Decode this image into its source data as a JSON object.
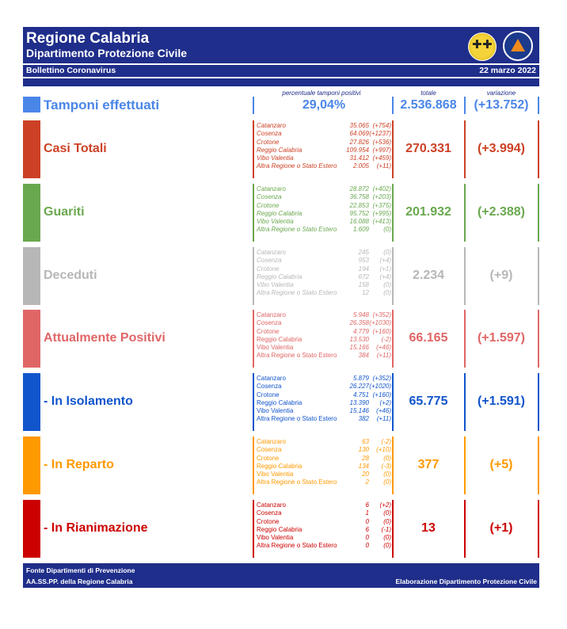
{
  "header": {
    "title": "Regione Calabria",
    "subtitle": "Dipartimento Protezione Civile",
    "bulletin": "Bollettino Coronavirus",
    "date": "22 marzo 2022"
  },
  "columns": {
    "pct_label": "percentuale tamponi positivi",
    "totale_label": "totale",
    "variazione_label": "variazione"
  },
  "tamponi": {
    "label": "Tamponi effettuati",
    "pct": "29,04%",
    "totale": "2.536.868",
    "variazione": "(+13.752)",
    "color": "#4a86e8"
  },
  "categories": [
    {
      "label": "Casi Totali",
      "color": "#cc4125",
      "totale": "270.331",
      "variazione": "(+3.994)",
      "italic": true,
      "detail": [
        {
          "name": "Catanzaro",
          "value": "35.065",
          "delta": "(+754)"
        },
        {
          "name": "Cosenza",
          "value": "64.069",
          "delta": "(+1237)"
        },
        {
          "name": "Crotone",
          "value": "27.826",
          "delta": "(+536)"
        },
        {
          "name": "Reggio Calabria",
          "value": "109.954",
          "delta": "(+997)"
        },
        {
          "name": "Vibo Valentia",
          "value": "31.412",
          "delta": "(+459)"
        },
        {
          "name": "Altra Regione o Stato Estero",
          "value": "2.005",
          "delta": "(+11)"
        }
      ]
    },
    {
      "label": "Guariti",
      "color": "#6aa84f",
      "totale": "201.932",
      "variazione": "(+2.388)",
      "italic": true,
      "detail": [
        {
          "name": "Catanzaro",
          "value": "28.872",
          "delta": "(+402)"
        },
        {
          "name": "Cosenza",
          "value": "36.758",
          "delta": "(+203)"
        },
        {
          "name": "Crotone",
          "value": "22.853",
          "delta": "(+375)"
        },
        {
          "name": "Reggio Calabria",
          "value": "95.752",
          "delta": "(+995)"
        },
        {
          "name": "Vibo Valentia",
          "value": "16.088",
          "delta": "(+413)"
        },
        {
          "name": "Altra Regione o Stato Estero",
          "value": "1.609",
          "delta": "(0)"
        }
      ]
    },
    {
      "label": "Deceduti",
      "color": "#b7b7b7",
      "totale": "2.234",
      "variazione": "(+9)",
      "italic": true,
      "detail": [
        {
          "name": "Catanzaro",
          "value": "245",
          "delta": "(0)"
        },
        {
          "name": "Cosenza",
          "value": "953",
          "delta": "(+4)"
        },
        {
          "name": "Crotone",
          "value": "194",
          "delta": "(+1)"
        },
        {
          "name": "Reggio Calabria",
          "value": "672",
          "delta": "(+4)"
        },
        {
          "name": "Vibo Valentia",
          "value": "158",
          "delta": "(0)"
        },
        {
          "name": "Altra Regione o Stato Estero",
          "value": "12",
          "delta": "(0)"
        }
      ]
    },
    {
      "label": "Attualmente Positivi",
      "color": "#e06666",
      "totale": "66.165",
      "variazione": "(+1.597)",
      "italic": false,
      "detail": [
        {
          "name": "Catanzaro",
          "value": "5.948",
          "delta": "(+352)"
        },
        {
          "name": "Cosenza",
          "value": "26.358",
          "delta": "(+1030)"
        },
        {
          "name": "Crotone",
          "value": "4.779",
          "delta": "(+160)"
        },
        {
          "name": "Reggio Calabria",
          "value": "13.530",
          "delta": "(-2)"
        },
        {
          "name": "Vibo Valentia",
          "value": "15.166",
          "delta": "(+46)"
        },
        {
          "name": "Altra Regione o Stato Estero",
          "value": "384",
          "delta": "(+11)"
        }
      ]
    },
    {
      "label": " - In Isolamento",
      "color": "#1155cc",
      "totale": "65.775",
      "variazione": "(+1.591)",
      "italic": false,
      "detail": [
        {
          "name": "Catanzaro",
          "value": "5.879",
          "delta": "(+352)"
        },
        {
          "name": "Cosenza",
          "value": "26.227",
          "delta": "(+1020)"
        },
        {
          "name": "Crotone",
          "value": "4.751",
          "delta": "(+160)"
        },
        {
          "name": "Reggio Calabria",
          "value": "13.390",
          "delta": "(+2)"
        },
        {
          "name": "Vibo Valentia",
          "value": "15.146",
          "delta": "(+46)"
        },
        {
          "name": "Altra Regione o Stato Estero",
          "value": "382",
          "delta": "(+11)"
        }
      ]
    },
    {
      "label": " - In Reparto",
      "color": "#ff9900",
      "totale": "377",
      "variazione": "(+5)",
      "italic": false,
      "detail": [
        {
          "name": "Catanzaro",
          "value": "63",
          "delta": "(-2)"
        },
        {
          "name": "Cosenza",
          "value": "130",
          "delta": "(+10)"
        },
        {
          "name": "Crotone",
          "value": "28",
          "delta": "(0)"
        },
        {
          "name": "Reggio Calabria",
          "value": "134",
          "delta": "(-3)"
        },
        {
          "name": "Vibo Valentia",
          "value": "20",
          "delta": "(0)"
        },
        {
          "name": "Altra Regione o Stato Estero",
          "value": "2",
          "delta": "(0)"
        }
      ]
    },
    {
      "label": " - In Rianimazione",
      "color": "#cc0000",
      "totale": "13",
      "variazione": "(+1)",
      "italic": false,
      "detail": [
        {
          "name": "Catanzaro",
          "value": "6",
          "delta": "(+2)"
        },
        {
          "name": "Cosenza",
          "value": "1",
          "delta": "(0)"
        },
        {
          "name": "Crotone",
          "value": "0",
          "delta": "(0)"
        },
        {
          "name": "Reggio Calabria",
          "value": "6",
          "delta": "(-1)"
        },
        {
          "name": "Vibo Valentia",
          "value": "0",
          "delta": "(0)"
        },
        {
          "name": "Altra Regione o Stato Estero",
          "value": "0",
          "delta": "(0)"
        }
      ]
    }
  ],
  "footer": {
    "line1": "Fonte Dipartimenti di Prevenzione",
    "line2": "AA.SS.PP.  della Regione Calabria",
    "right": "Elaborazione Dipartimento Protezione Civile"
  },
  "logos": {
    "left_icon": "regione-calabria-crest-icon",
    "right_icon": "protezione-civile-calabria-icon"
  }
}
